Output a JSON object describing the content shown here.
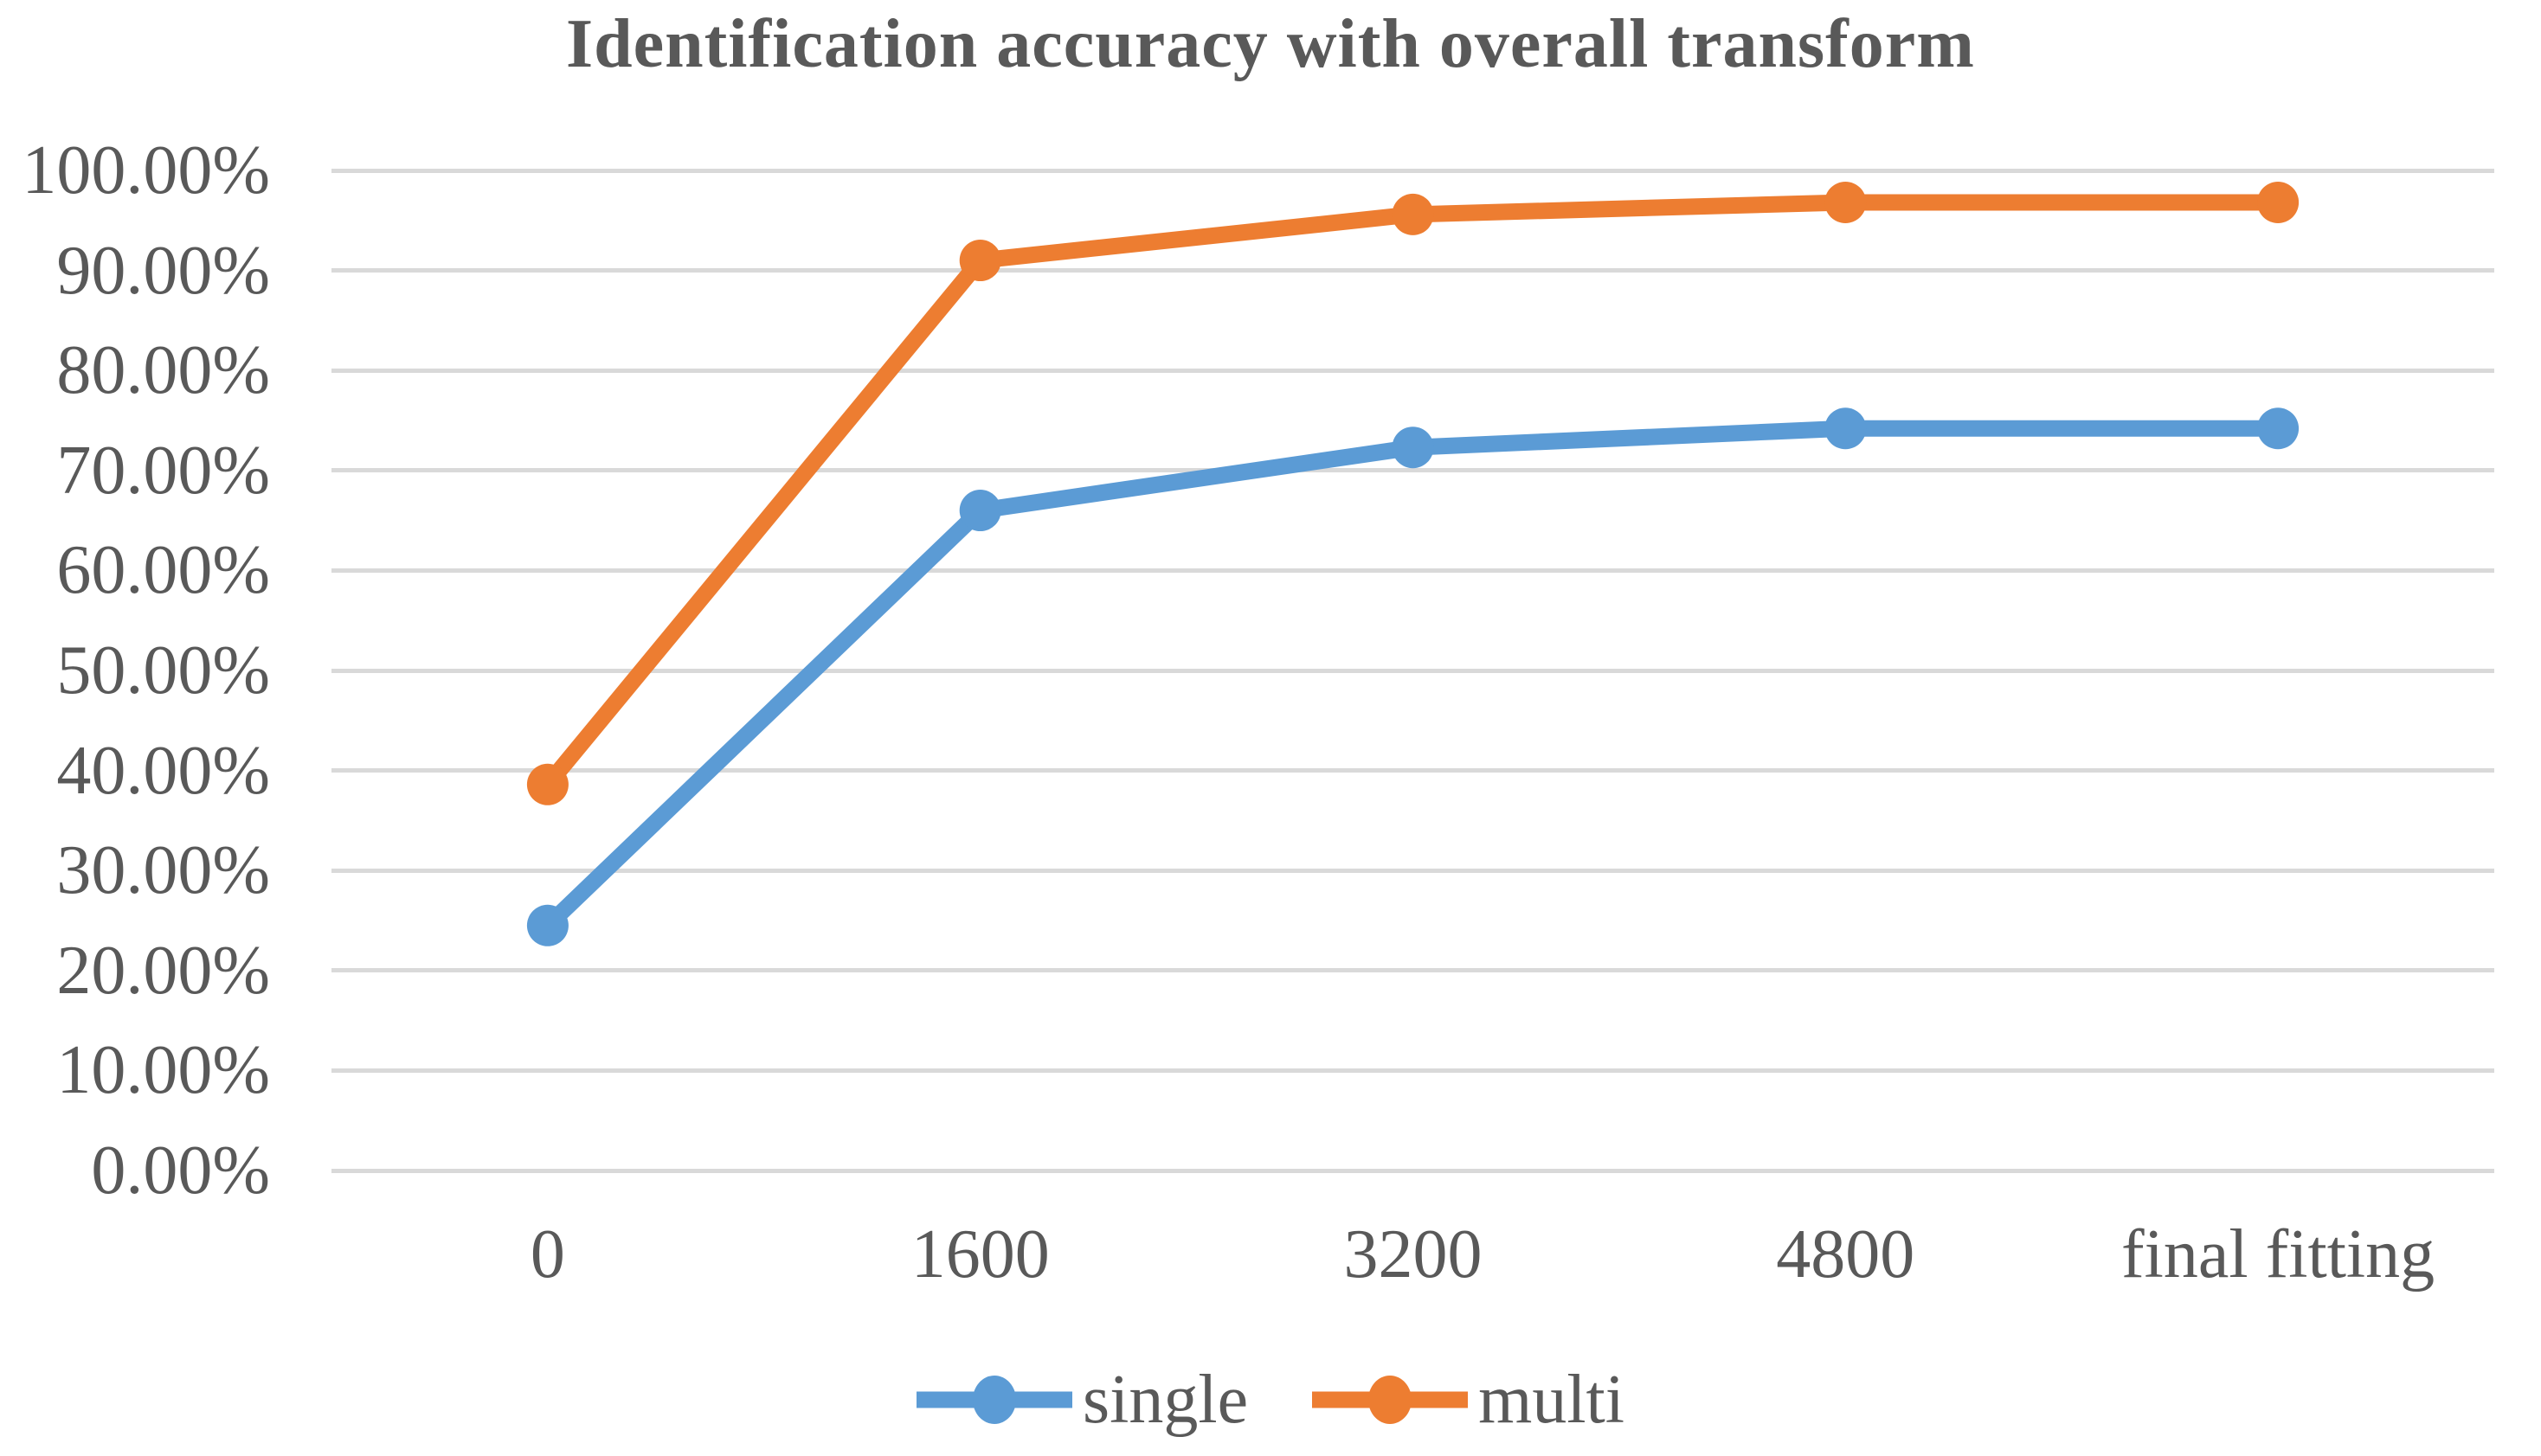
{
  "title": "Identification accuracy with overall transform",
  "chart_data": {
    "type": "line",
    "title": "Identification accuracy with overall transform",
    "categories": [
      "0",
      "1600",
      "3200",
      "4800",
      "final fitting"
    ],
    "series": [
      {
        "name": "single",
        "color": "#5B9BD5",
        "values": [
          24.5,
          66.0,
          72.3,
          74.2,
          74.2
        ]
      },
      {
        "name": "multi",
        "color": "#ED7D31",
        "values": [
          38.6,
          91.0,
          95.6,
          96.8,
          96.8
        ]
      }
    ],
    "y_axis": {
      "min": 0,
      "max": 100,
      "step": 10,
      "unit": "%",
      "tick_labels": [
        "0.00%",
        "10.00%",
        "20.00%",
        "30.00%",
        "40.00%",
        "50.00%",
        "60.00%",
        "70.00%",
        "80.00%",
        "90.00%",
        "100.00%"
      ]
    },
    "x_axis": {
      "tick_labels": [
        "0",
        "1600",
        "3200",
        "4800",
        "final fitting"
      ]
    },
    "grid": true,
    "legend_position": "bottom",
    "colors": {
      "gridline": "#D9D9D9",
      "text": "#595959",
      "background": "#FFFFFF"
    }
  },
  "legend": {
    "single_label": "single",
    "multi_label": "multi"
  }
}
